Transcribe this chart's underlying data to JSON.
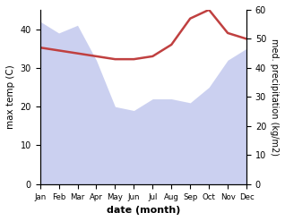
{
  "months": [
    "Jan",
    "Feb",
    "Mar",
    "Apr",
    "May",
    "Jun",
    "Jul",
    "Aug",
    "Sep",
    "Oct",
    "Nov",
    "Dec"
  ],
  "max_temp": [
    42,
    39,
    41,
    32,
    20,
    19,
    22,
    22,
    21,
    25,
    32,
    35
  ],
  "precipitation": [
    47,
    46,
    45,
    44,
    43,
    43,
    44,
    48,
    57,
    60,
    52,
    50
  ],
  "precip_color": "#c04040",
  "fill_color": "#b0b8e8",
  "fill_alpha": 0.65,
  "xlabel": "date (month)",
  "ylabel_left": "max temp (C)",
  "ylabel_right": "med. precipitation (kg/m2)",
  "ylim_left": [
    0,
    45
  ],
  "ylim_right": [
    0,
    60
  ],
  "yticks_left": [
    0,
    10,
    20,
    30,
    40
  ],
  "yticks_right": [
    0,
    10,
    20,
    30,
    40,
    50,
    60
  ],
  "bg_color": "#ffffff"
}
